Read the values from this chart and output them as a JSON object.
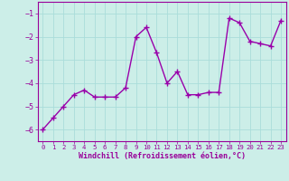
{
  "x": [
    0,
    1,
    2,
    3,
    4,
    5,
    6,
    7,
    8,
    9,
    10,
    11,
    12,
    13,
    14,
    15,
    16,
    17,
    18,
    19,
    20,
    21,
    22,
    23
  ],
  "y": [
    -6.0,
    -5.5,
    -5.0,
    -4.5,
    -4.3,
    -4.6,
    -4.6,
    -4.6,
    -4.2,
    -2.0,
    -1.6,
    -2.7,
    -4.0,
    -3.5,
    -4.5,
    -4.5,
    -4.4,
    -4.4,
    -1.2,
    -1.4,
    -2.2,
    -2.3,
    -2.4,
    -1.3
  ],
  "line_color": "#9900aa",
  "marker": "+",
  "markersize": 4,
  "linewidth": 1.0,
  "markeredgewidth": 1.0,
  "xlabel": "Windchill (Refroidissement éolien,°C)",
  "xlabel_fontsize": 6.0,
  "ylim": [
    -6.5,
    -0.5
  ],
  "xlim": [
    -0.5,
    23.5
  ],
  "yticks": [
    -6,
    -5,
    -4,
    -3,
    -2,
    -1
  ],
  "xticks": [
    0,
    1,
    2,
    3,
    4,
    5,
    6,
    7,
    8,
    9,
    10,
    11,
    12,
    13,
    14,
    15,
    16,
    17,
    18,
    19,
    20,
    21,
    22,
    23
  ],
  "background_color": "#cceee8",
  "grid_color": "#aaddda",
  "tick_color": "#990099",
  "ytick_fontsize": 6.0,
  "xtick_fontsize": 5.2,
  "xlabel_color": "#990099",
  "spine_color": "#990099"
}
